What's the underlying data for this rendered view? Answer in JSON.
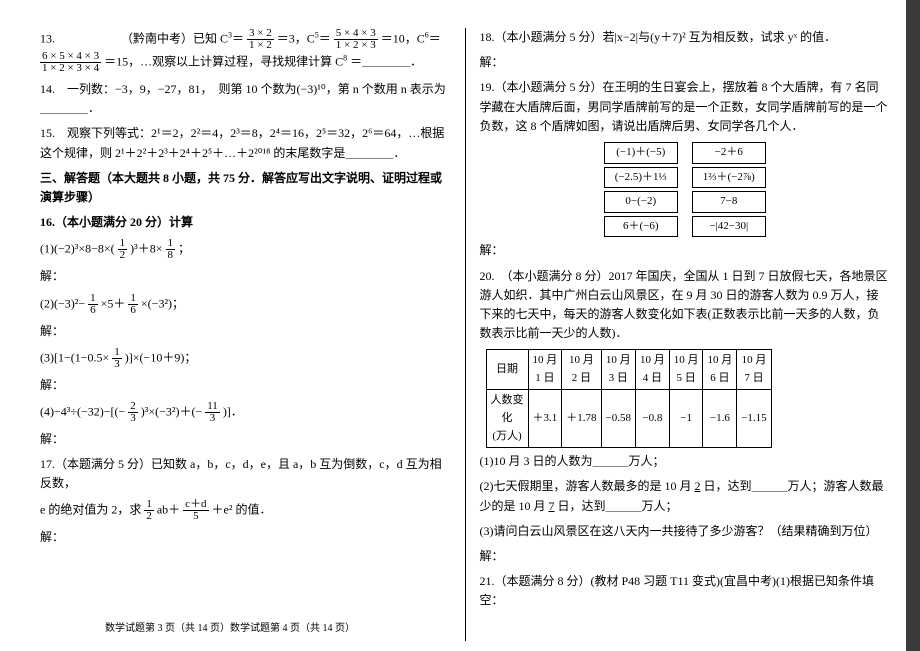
{
  "left": {
    "q13_pre": "13.　　　　　　（黔南中考）已知 C",
    "q13_c3": "3",
    "q13_frac1_num": "3 × 2",
    "q13_frac1_den": "1 × 2",
    "q13_eq3": "＝3，C",
    "q13_c5": "5",
    "q13_frac2_num": "5 × 4 × 3",
    "q13_frac2_den": "1 × 2 × 3",
    "q13_eq10": "＝10，C",
    "q13_c6": "6",
    "q13_frac3_num": "6 × 5 × 4 × 3",
    "q13_frac3_den": "1 × 2 × 3 × 4",
    "q13_eq15": "＝15，…观察以上计算过程，寻找规律计算 C",
    "q13_c8": "8",
    "q13_tail": "＝＿＿＿＿．",
    "q14": "14.　一列数：−3，9，−27，81，　则第 10 个数为(−3)¹⁰，第 n 个数用 n 表示为＿＿＿＿．",
    "q15_a": "15.　观察下列等式：2¹＝2，2²＝4，2³＝8，2⁴＝16，2⁵＝32，2⁶＝64，…根据这个规律，则 2¹＋2²＋2³＋2⁴＋2⁵＋…＋2²⁰¹⁸ 的末尾数字是＿＿＿＿．",
    "sec3": "三、解答题（本大题共 8 小题，共 75 分．解答应写出文字说明、证明过程或演算步骤）",
    "q16_title": "16.（本小题满分 20 分）计算",
    "q16_1_pre": "(1)(−2)³×8−8×(",
    "q16_1_frac_num": "1",
    "q16_1_frac_den": "2",
    "q16_1_mid": ")³＋8×",
    "q16_1_frac2_num": "1",
    "q16_1_frac2_den": "8",
    "q16_1_tail": "；",
    "ans": "解：",
    "q16_2_pre": "(2)(−3)²−",
    "q16_2_f1n": "1",
    "q16_2_f1d": "6",
    "q16_2_mid1": "×5＋",
    "q16_2_f2n": "1",
    "q16_2_f2d": "6",
    "q16_2_tail": "×(−3²)；",
    "q16_3_pre": "(3)[1−(1−0.5×",
    "q16_3_fn": "1",
    "q16_3_fd": "3",
    "q16_3_tail": ")]×(−10＋9)；",
    "q16_4_pre": "(4)−4³÷(−32)−[(−",
    "q16_4_f1n": "2",
    "q16_4_f1d": "3",
    "q16_4_mid": ")³×(−3²)＋(−",
    "q16_4_f2n": "11",
    "q16_4_f2d": "3",
    "q16_4_tail": ")]．",
    "q17_a": "17.（本题满分 5 分）已知数 a，b，c，d，e，且 a，b 互为倒数，c，d 互为相反数，",
    "q17_b_pre": "e 的绝对值为 2，求 ",
    "q17_f1n": "1",
    "q17_f1d": "2",
    "q17_mid": "ab＋",
    "q17_f2n": "c＋d",
    "q17_f2d": "5",
    "q17_tail": "＋e² 的值．",
    "footer": "数学试题第 3 页（共 14 页）数学试题第 4 页（共 14 页）"
  },
  "right": {
    "q18": "18.（本小题满分 5 分）若|x−2|与(y＋7)² 互为相反数，试求 yˣ 的值．",
    "ans": "解：",
    "q19_a": "19.（本小题满分 5 分）在王明的生日宴会上，摆放着 8 个大盾牌，有 7 名同学藏在大盾牌后面，男同学盾牌前写的是一个正数，女同学盾牌前写的是一个负数，这 8 个盾牌如图，请说出盾牌后男、女同学各几个人．",
    "shields": [
      [
        "(−1)＋(−5)",
        "−2＋6"
      ],
      [
        "(−2.5)＋1⅓",
        "1⅔＋(−2⅞)"
      ],
      [
        "0−(−2)",
        "7−8"
      ],
      [
        "6＋(−6)",
        "−|42−30|"
      ]
    ],
    "q20_a": "20.　（本小题满分 8 分）2017 年国庆，全国从 1 日到 7 日放假七天，各地景区游人如织．其中广州白云山风景区，在 9 月 30 日的游客人数为 0.9 万人，接下来的七天中，每天的游客人数变化如下表(正数表示比前一天多的人数，负数表示比前一天少的人数)．",
    "table": {
      "h0": "日期",
      "h1": "10 月\n1 日",
      "h2": "10 月\n2 日",
      "h3": "10 月\n3 日",
      "h4": "10 月\n4 日",
      "h5": "10 月\n5 日",
      "h6": "10 月\n6 日",
      "h7": "10 月\n7 日",
      "r0": "人数变\n化\n(万人)",
      "r1": "＋3.1",
      "r2": "＋1.78",
      "r3": "−0.58",
      "r4": "−0.8",
      "r5": "−1",
      "r6": "−1.6",
      "r7": "−1.15"
    },
    "q20_1": "(1)10 月 3 日的人数为＿＿＿万人；",
    "q20_2a": "(2)七天假期里，游客人数最多的是 10 月",
    "q20_2b": "2",
    "q20_2c": "日，达到＿＿＿万人；游客人数最少的是 10 月",
    "q20_2d": "7",
    "q20_2e": "日，达到＿＿＿万人；",
    "q20_3": "(3)请问白云山风景区在这八天内一共接待了多少游客？（结果精确到万位）",
    "q21": "21.（本题满分 8 分）(教材 P48 习题 T11 变式)(宜昌中考)(1)根据已知条件填空："
  }
}
